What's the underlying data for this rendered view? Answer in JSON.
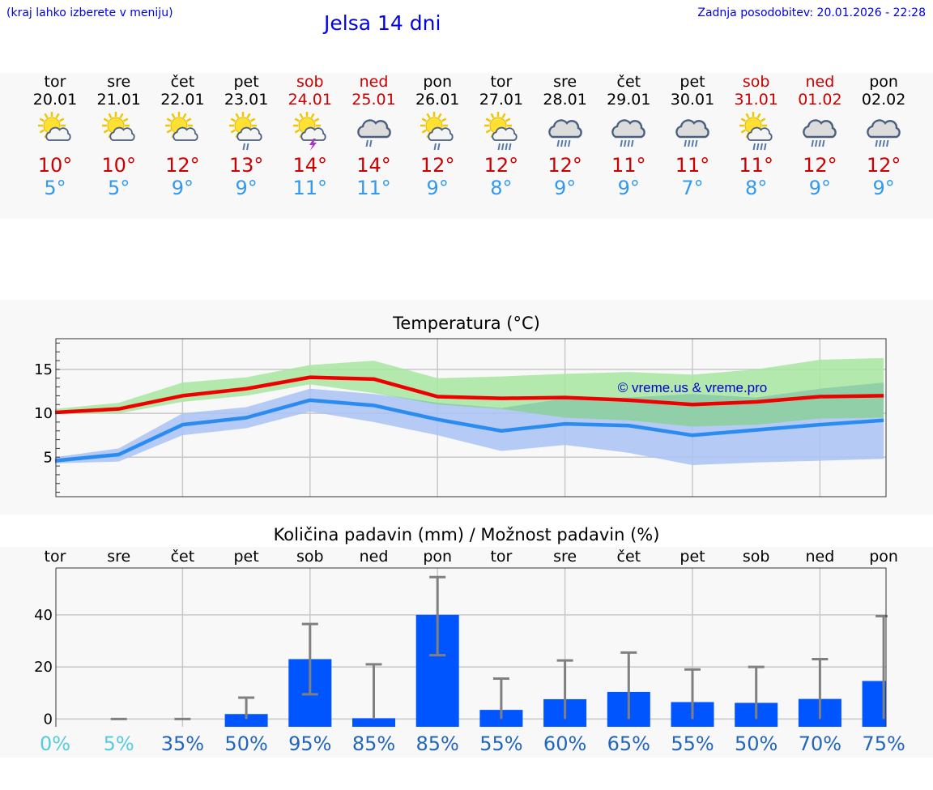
{
  "header": {
    "hint": "(kraj lahko izberete v meniju)",
    "title": "Jelsa 14 dni",
    "updated": "Zadnja posodobitev: 20.01.2026 - 22:28"
  },
  "colors": {
    "max": "#ee0000",
    "min": "#2a8cf0",
    "maxBand": "#a8e6a0",
    "minBand": "#a9c2f5",
    "overlap": "#88c8a8",
    "precip": "#0055ff",
    "err": "#808080",
    "probLight": "#55ccdd",
    "probDark": "#2266bb",
    "weekend": "#cc0000"
  },
  "days": [
    {
      "name": "tor",
      "date": "20.01",
      "weekend": false,
      "icon": "sun-cloud-icon",
      "tmax": "10°",
      "tmin": "5°"
    },
    {
      "name": "sre",
      "date": "21.01",
      "weekend": false,
      "icon": "sun-cloud-icon",
      "tmax": "10°",
      "tmin": "5°"
    },
    {
      "name": "čet",
      "date": "22.01",
      "weekend": false,
      "icon": "sun-cloud-icon",
      "tmax": "12°",
      "tmin": "9°"
    },
    {
      "name": "pet",
      "date": "23.01",
      "weekend": false,
      "icon": "sun-cloud-rain-icon",
      "tmax": "13°",
      "tmin": "9°"
    },
    {
      "name": "sob",
      "date": "24.01",
      "weekend": true,
      "icon": "sun-cloud-thunder-icon",
      "tmax": "14°",
      "tmin": "11°"
    },
    {
      "name": "ned",
      "date": "25.01",
      "weekend": true,
      "icon": "cloud-rain-icon",
      "tmax": "14°",
      "tmin": "11°"
    },
    {
      "name": "pon",
      "date": "26.01",
      "weekend": false,
      "icon": "sun-cloud-rain-icon",
      "tmax": "12°",
      "tmin": "9°"
    },
    {
      "name": "tor",
      "date": "27.01",
      "weekend": false,
      "icon": "sun-cloud-heavy-rain-icon",
      "tmax": "12°",
      "tmin": "8°"
    },
    {
      "name": "sre",
      "date": "28.01",
      "weekend": false,
      "icon": "cloud-heavy-rain-icon",
      "tmax": "12°",
      "tmin": "9°"
    },
    {
      "name": "čet",
      "date": "29.01",
      "weekend": false,
      "icon": "cloud-heavy-rain-icon",
      "tmax": "11°",
      "tmin": "9°"
    },
    {
      "name": "pet",
      "date": "30.01",
      "weekend": false,
      "icon": "cloud-heavy-rain-icon",
      "tmax": "11°",
      "tmin": "7°"
    },
    {
      "name": "sob",
      "date": "31.01",
      "weekend": true,
      "icon": "sun-cloud-heavy-rain-icon",
      "tmax": "11°",
      "tmin": "8°"
    },
    {
      "name": "ned",
      "date": "01.02",
      "weekend": true,
      "icon": "cloud-heavy-rain-icon",
      "tmax": "12°",
      "tmin": "9°"
    },
    {
      "name": "pon",
      "date": "02.02",
      "weekend": false,
      "icon": "cloud-heavy-rain-icon",
      "tmax": "12°",
      "tmin": "9°"
    }
  ],
  "chart_data": [
    {
      "type": "line",
      "title": "Temperatura (°C)",
      "watermark": "© vreme.us & vreme.pro",
      "ylim": [
        0.5,
        18.5
      ],
      "yticks": [
        5,
        10,
        15
      ],
      "x": [
        0,
        1,
        2,
        3,
        4,
        5,
        6,
        7,
        8,
        9,
        10,
        11,
        12,
        13
      ],
      "series": [
        {
          "name": "max",
          "values": [
            10.1,
            10.5,
            12.0,
            12.8,
            14.1,
            13.9,
            11.9,
            11.7,
            11.8,
            11.5,
            11.0,
            11.3,
            11.9,
            12.0
          ]
        },
        {
          "name": "min",
          "values": [
            4.6,
            5.3,
            8.7,
            9.5,
            11.5,
            10.9,
            9.3,
            8.0,
            8.8,
            8.6,
            7.5,
            8.1,
            8.7,
            9.2
          ]
        },
        {
          "name": "max_range_high",
          "values": [
            10.5,
            11.2,
            13.5,
            14.1,
            15.5,
            16.0,
            14.0,
            14.2,
            14.5,
            14.7,
            14.4,
            15.0,
            16.1,
            16.3
          ]
        },
        {
          "name": "max_range_low",
          "values": [
            9.9,
            10.0,
            11.3,
            12.0,
            13.3,
            12.3,
            11.0,
            10.5,
            9.5,
            9.2,
            8.5,
            8.7,
            9.4,
            9.5
          ]
        },
        {
          "name": "min_range_high",
          "values": [
            5.0,
            6.0,
            10.0,
            10.7,
            12.8,
            12.2,
            11.2,
            10.6,
            11.7,
            11.8,
            12.2,
            11.8,
            12.8,
            13.5
          ]
        },
        {
          "name": "min_range_low",
          "values": [
            4.3,
            4.5,
            7.5,
            8.3,
            10.2,
            9.0,
            7.5,
            5.7,
            6.4,
            5.5,
            4.1,
            4.4,
            4.6,
            4.8
          ]
        }
      ]
    },
    {
      "type": "bar",
      "title": "Količina padavin (mm) / Možnost padavin (%)",
      "ylim": [
        -3,
        58
      ],
      "yticks": [
        0,
        20,
        40
      ],
      "categories": [
        "tor",
        "sre",
        "čet",
        "pet",
        "sob",
        "ned",
        "pon",
        "tor",
        "sre",
        "čet",
        "pet",
        "sob",
        "ned",
        "pon"
      ],
      "values": [
        0,
        0,
        0,
        1.9,
        23.0,
        0.3,
        40.0,
        3.5,
        7.6,
        10.4,
        6.5,
        6.2,
        7.7,
        14.6
      ],
      "err_low": [
        null,
        null,
        null,
        0,
        9.5,
        0,
        24.5,
        0,
        0,
        0,
        0,
        0,
        0,
        0
      ],
      "err_high": [
        null,
        0,
        0,
        8.2,
        36.5,
        21.0,
        54.5,
        15.5,
        22.5,
        25.5,
        19.0,
        20.0,
        23.0,
        39.5
      ],
      "probabilities": [
        "0%",
        "5%",
        "35%",
        "50%",
        "95%",
        "85%",
        "85%",
        "55%",
        "60%",
        "65%",
        "55%",
        "50%",
        "70%",
        "75%"
      ]
    }
  ]
}
